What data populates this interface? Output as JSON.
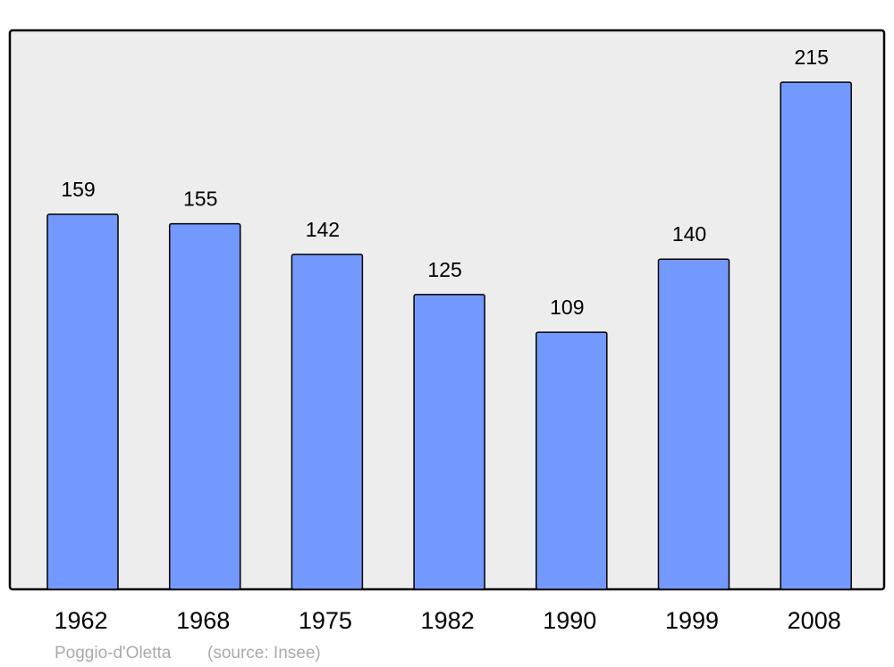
{
  "chart_data": {
    "type": "bar",
    "title": "",
    "xlabel": "",
    "ylabel": "",
    "categories": [
      "1962",
      "1968",
      "1975",
      "1982",
      "1990",
      "1999",
      "2008"
    ],
    "values": [
      159,
      155,
      142,
      125,
      109,
      140,
      215
    ],
    "data_labels": [
      "159",
      "155",
      "142",
      "125",
      "109",
      "140",
      "215"
    ],
    "ylim": [
      0,
      237
    ],
    "grid": false,
    "legend": "none",
    "colors": {
      "bar": "#7399ff",
      "plot_background": "#ededed",
      "border": "#000000",
      "footer_text": "#aaaaaa"
    }
  },
  "footer": {
    "place": "Poggio-d'Oletta",
    "source": "(source: Insee)"
  }
}
